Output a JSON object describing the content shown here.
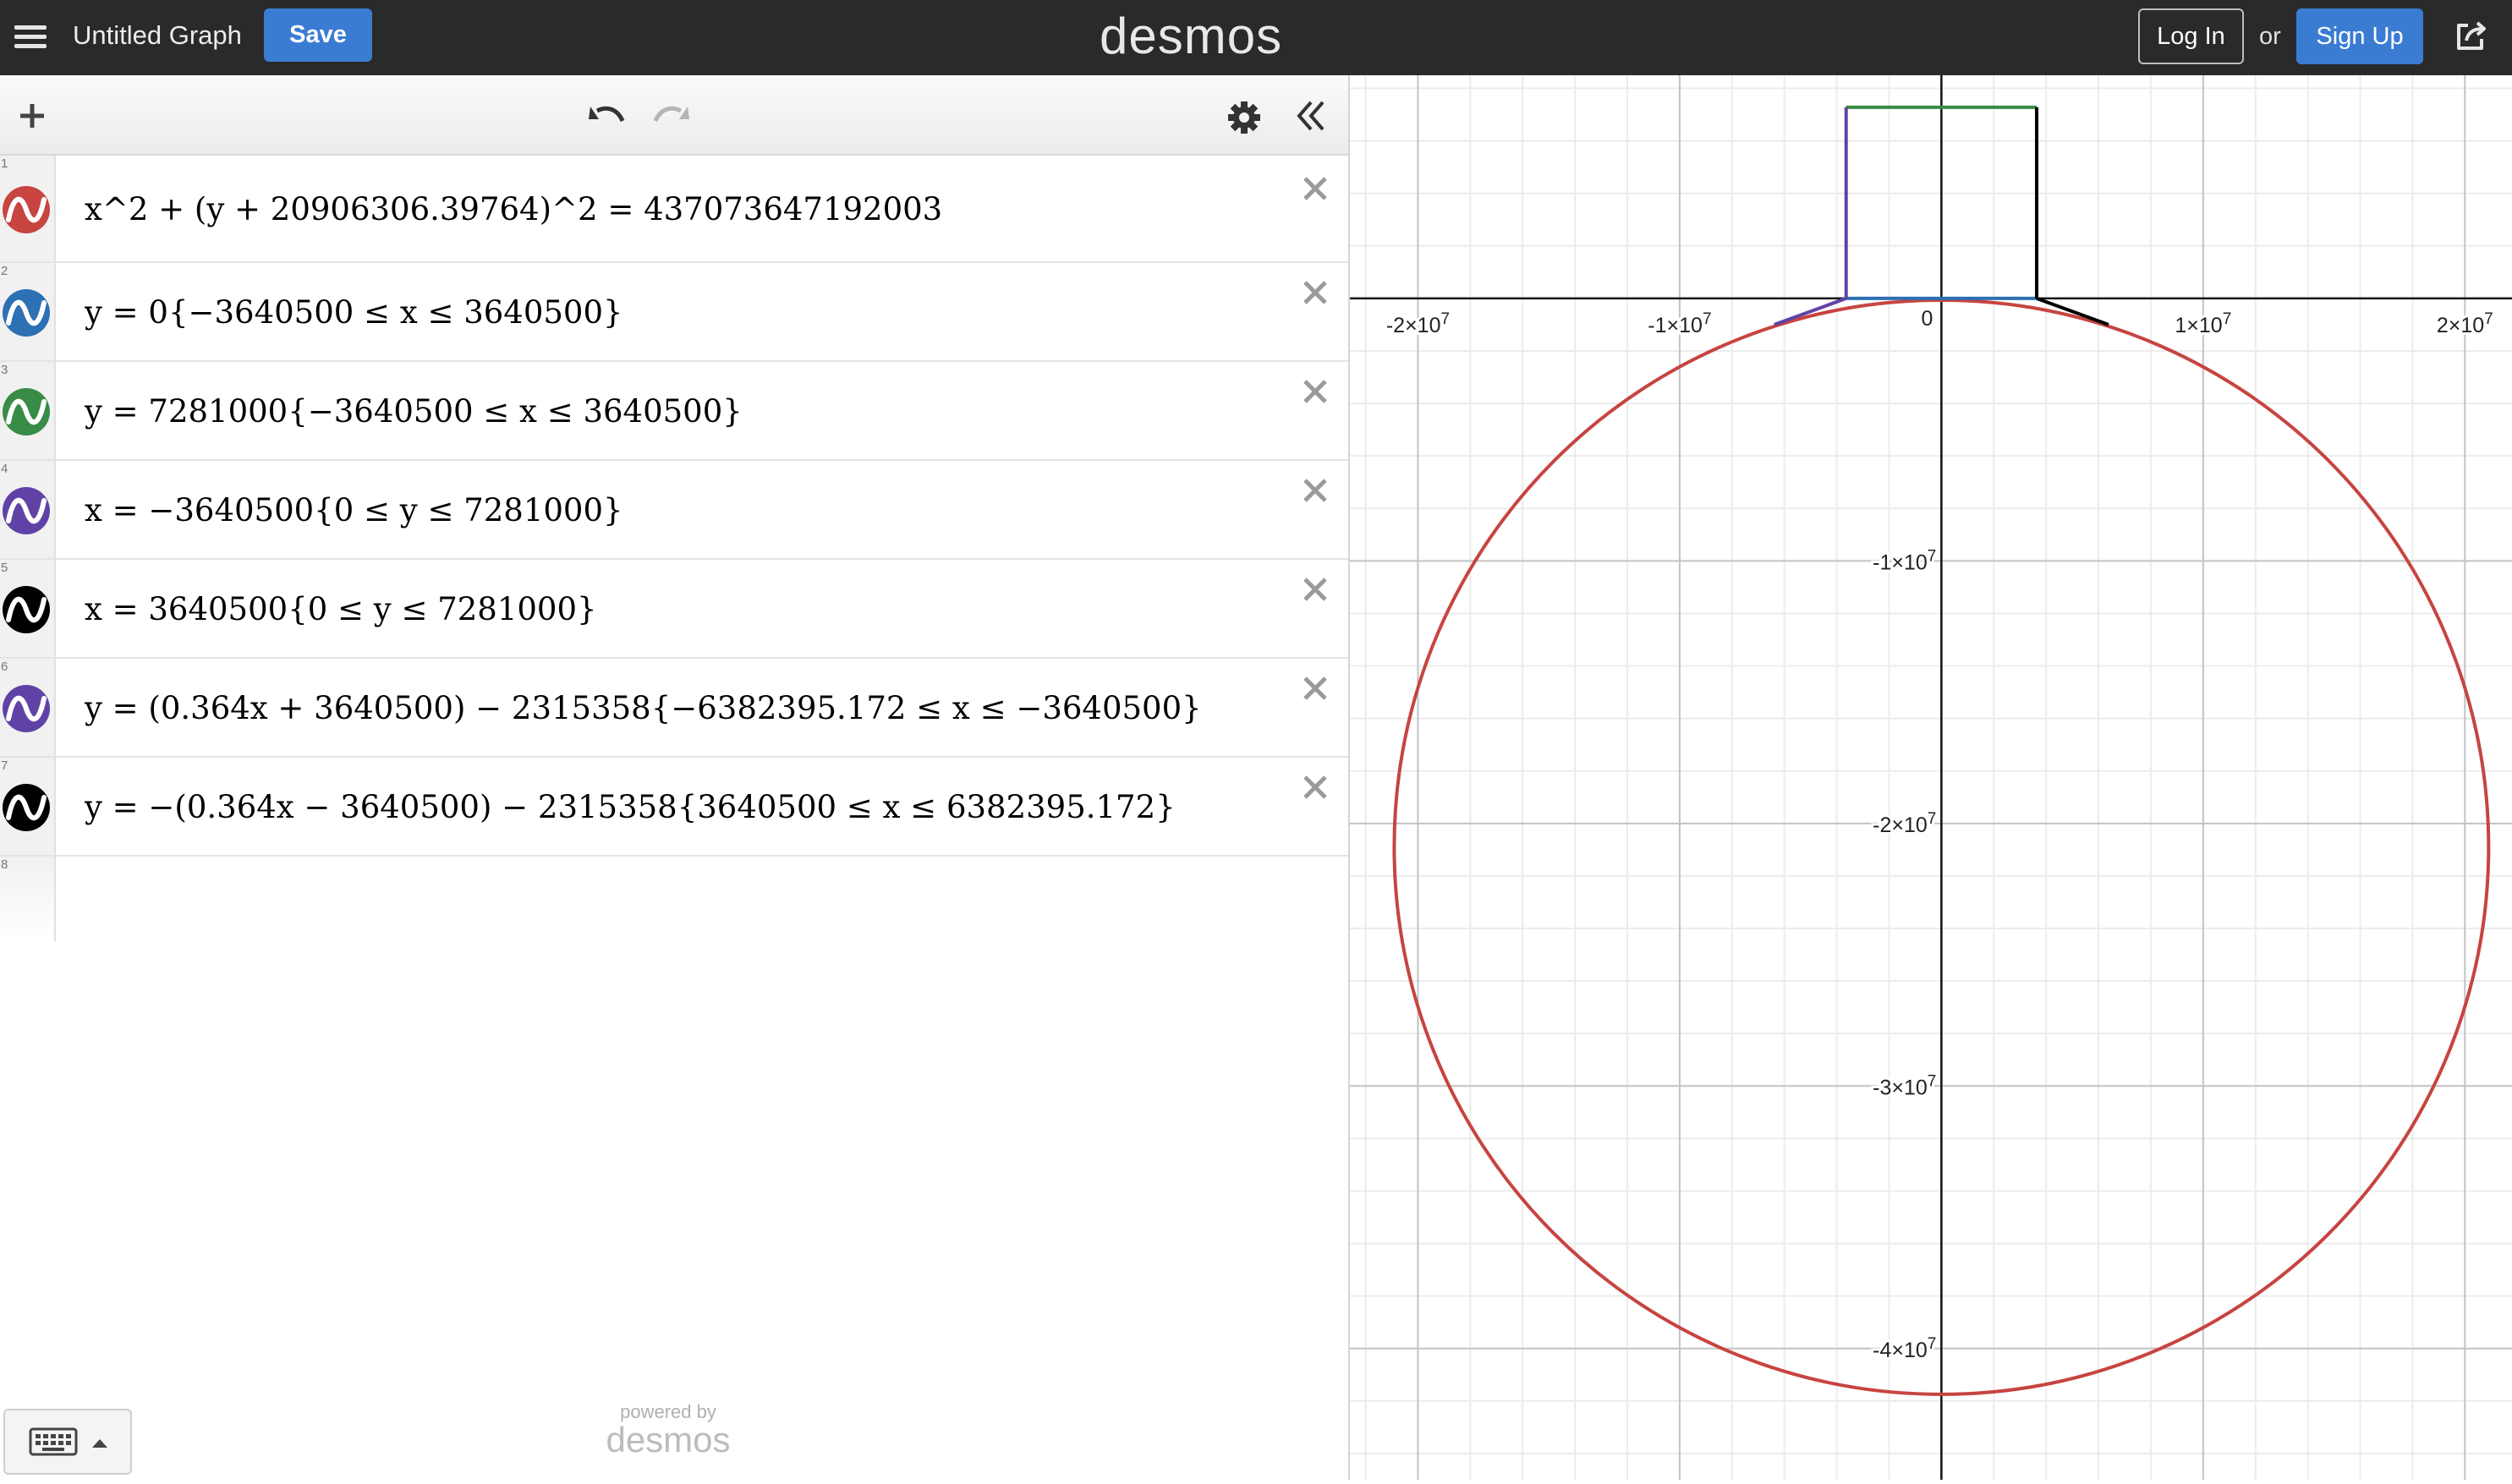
{
  "topbar": {
    "title": "Untitled Graph",
    "save_label": "Save",
    "logo": "desmos",
    "login_label": "Log In",
    "or_label": "or",
    "signup_label": "Sign Up",
    "accent_color": "#3b7cd3",
    "bar_color": "#2a2a2a"
  },
  "toolbar": {
    "add_icon": "plus-icon",
    "undo_icon": "undo-icon",
    "redo_icon": "redo-icon",
    "settings_icon": "gear-icon",
    "collapse_icon": "double-chevron-left-icon"
  },
  "expressions": [
    {
      "num": "1",
      "color": "#c74440",
      "latex": "x^2 + (y + 20906306.39764)^2 = 437073647192003"
    },
    {
      "num": "2",
      "color": "#2d70b3",
      "latex": "y = 0{−3640500 ≤ x ≤ 3640500}"
    },
    {
      "num": "3",
      "color": "#388c46",
      "latex": "y = 7281000{−3640500 ≤ x ≤ 3640500}"
    },
    {
      "num": "4",
      "color": "#6042a6",
      "latex": "x = −3640500{0 ≤ y ≤ 7281000}"
    },
    {
      "num": "5",
      "color": "#000000",
      "latex": "x = 3640500{0 ≤ y ≤ 7281000}"
    },
    {
      "num": "6",
      "color": "#6042a6",
      "latex": "y = (0.364x + 3640500) − 2315358{−6382395.172 ≤ x ≤ −3640500}"
    },
    {
      "num": "7",
      "color": "#000000",
      "latex": "y = −(0.364x − 3640500) − 2315358{3640500 ≤ x ≤ 6382395.172}"
    }
  ],
  "empty_row_num": "8",
  "footer": {
    "powered_by": "powered by",
    "brand": "desmos"
  },
  "graph": {
    "x_ticks": [
      {
        "value": -20000000,
        "label": "-2×10",
        "exp": "7"
      },
      {
        "value": -10000000,
        "label": "-1×10",
        "exp": "7"
      },
      {
        "value": 0,
        "label": "0",
        "exp": ""
      },
      {
        "value": 10000000,
        "label": "1×10",
        "exp": "7"
      },
      {
        "value": 20000000,
        "label": "2×10",
        "exp": "7"
      }
    ],
    "y_ticks": [
      {
        "value": -10000000,
        "label": "-1×10",
        "exp": "7"
      },
      {
        "value": -20000000,
        "label": "-2×10",
        "exp": "7"
      },
      {
        "value": -30000000,
        "label": "-3×10",
        "exp": "7"
      },
      {
        "value": -40000000,
        "label": "-4×10",
        "exp": "7"
      }
    ],
    "x_range": [
      -22600000,
      21800000
    ],
    "y_range": [
      -45000000,
      8500000
    ],
    "grid": true
  }
}
